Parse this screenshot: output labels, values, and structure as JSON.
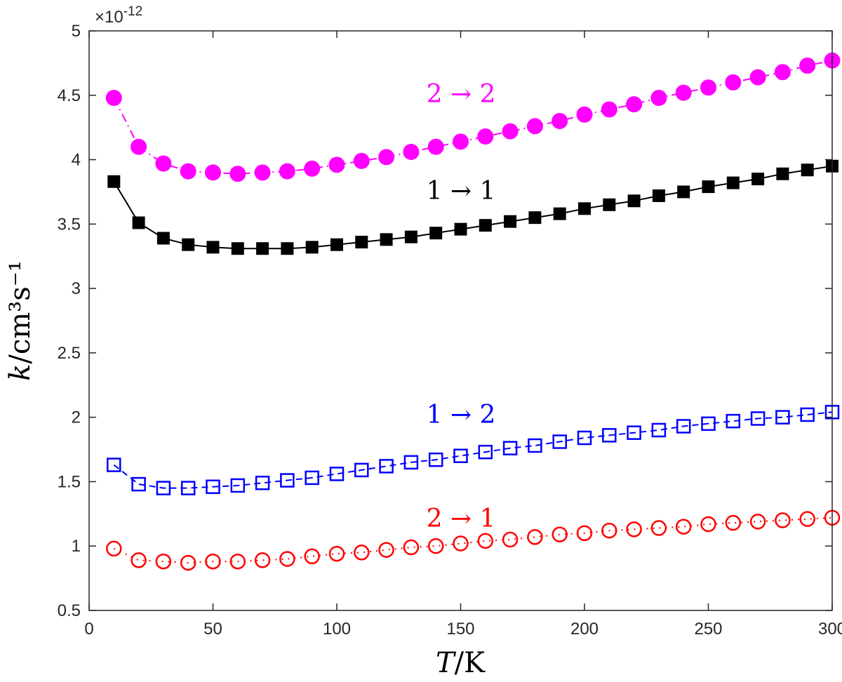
{
  "chart_data": {
    "type": "line",
    "title": "",
    "xlabel_var": "T",
    "xlabel_unit": "/K",
    "ylabel_var": "k",
    "ylabel_unit": "/cm³s⁻¹",
    "y_exponent": "×10",
    "y_exponent_power": "-12",
    "xlim": [
      0,
      300
    ],
    "ylim": [
      0.5,
      5
    ],
    "x_ticks": [
      "0",
      "50",
      "100",
      "150",
      "200",
      "250",
      "300"
    ],
    "y_ticks": [
      "0.5",
      "1",
      "1.5",
      "2",
      "2.5",
      "3",
      "3.5",
      "4",
      "4.5",
      "5"
    ],
    "x": [
      10,
      20,
      30,
      40,
      50,
      60,
      70,
      80,
      90,
      100,
      110,
      120,
      130,
      140,
      150,
      160,
      170,
      180,
      190,
      200,
      210,
      220,
      230,
      240,
      250,
      260,
      270,
      280,
      290,
      300
    ],
    "series": [
      {
        "name": "2 → 2",
        "color": "#ff00ff",
        "marker": "filled-circle",
        "line": "dashdot",
        "values": [
          4.48,
          4.1,
          3.97,
          3.91,
          3.9,
          3.89,
          3.9,
          3.91,
          3.93,
          3.96,
          3.99,
          4.02,
          4.06,
          4.1,
          4.14,
          4.18,
          4.22,
          4.26,
          4.3,
          4.35,
          4.39,
          4.43,
          4.48,
          4.52,
          4.56,
          4.6,
          4.64,
          4.68,
          4.73,
          4.77
        ]
      },
      {
        "name": "1 → 1",
        "color": "#000000",
        "marker": "filled-square",
        "line": "solid",
        "values": [
          3.83,
          3.51,
          3.39,
          3.34,
          3.32,
          3.31,
          3.31,
          3.31,
          3.32,
          3.34,
          3.36,
          3.38,
          3.4,
          3.43,
          3.46,
          3.49,
          3.52,
          3.55,
          3.58,
          3.62,
          3.65,
          3.68,
          3.72,
          3.75,
          3.79,
          3.82,
          3.85,
          3.89,
          3.92,
          3.95
        ]
      },
      {
        "name": "1 → 2",
        "color": "#0000ff",
        "marker": "open-square",
        "line": "dashed",
        "values": [
          1.63,
          1.48,
          1.45,
          1.45,
          1.46,
          1.47,
          1.49,
          1.51,
          1.53,
          1.56,
          1.59,
          1.62,
          1.65,
          1.67,
          1.7,
          1.73,
          1.76,
          1.78,
          1.81,
          1.84,
          1.86,
          1.88,
          1.9,
          1.93,
          1.95,
          1.97,
          1.99,
          2.0,
          2.02,
          2.04
        ]
      },
      {
        "name": "2 → 1",
        "color": "#ff0000",
        "marker": "open-circle",
        "line": "dotted",
        "values": [
          0.98,
          0.89,
          0.88,
          0.87,
          0.88,
          0.88,
          0.89,
          0.9,
          0.92,
          0.94,
          0.95,
          0.97,
          0.99,
          1.0,
          1.02,
          1.04,
          1.05,
          1.07,
          1.09,
          1.1,
          1.12,
          1.13,
          1.14,
          1.15,
          1.17,
          1.18,
          1.19,
          1.2,
          1.21,
          1.22
        ]
      }
    ],
    "annotations": [
      {
        "text": "2 → 2",
        "series": 0
      },
      {
        "text": "1 → 1",
        "series": 1
      },
      {
        "text": "1 → 2",
        "series": 2
      },
      {
        "text": "2 → 1",
        "series": 3
      }
    ]
  }
}
